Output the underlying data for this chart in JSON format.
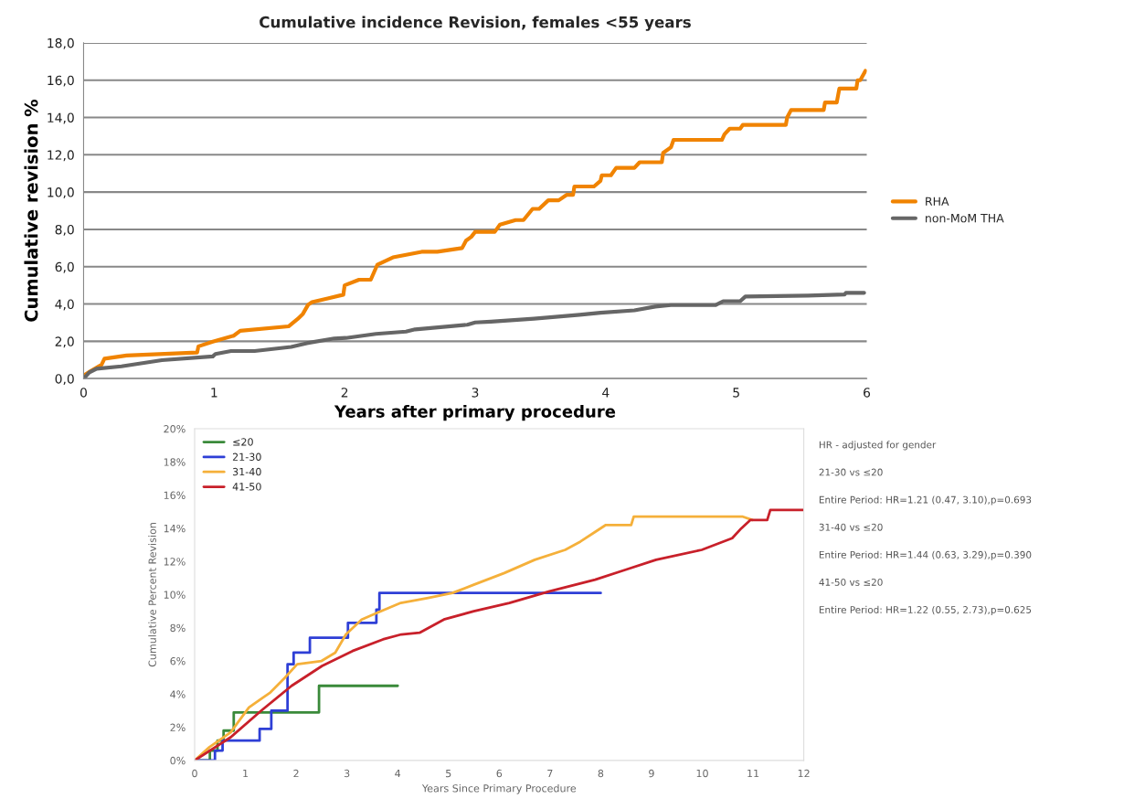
{
  "chart_data": [
    {
      "type": "line",
      "title": "Cumulative incidence Revision, females <55 years",
      "xlabel": "Years after primary procedure",
      "ylabel": "Cumulative revision %",
      "xlim": [
        0,
        6
      ],
      "xticks": [
        0,
        1,
        2,
        3,
        4,
        5,
        6
      ],
      "ylim": [
        0,
        18
      ],
      "yticks": [
        {
          "value": 0,
          "label": "0,0"
        },
        {
          "value": 2,
          "label": "2,0"
        },
        {
          "value": 4,
          "label": "4,0"
        },
        {
          "value": 6,
          "label": "6,0"
        },
        {
          "value": 8,
          "label": "8,0"
        },
        {
          "value": 10,
          "label": "10,0"
        },
        {
          "value": 12,
          "label": "12,0"
        },
        {
          "value": 14,
          "label": "14,0"
        },
        {
          "value": 16,
          "label": "16,0"
        },
        {
          "value": 18,
          "label": "18,0"
        }
      ],
      "grid": "y",
      "legend": "right",
      "series": [
        {
          "name": "RHA",
          "color": "#f08300",
          "x": [
            0,
            0.056,
            0.137,
            0.16,
            0.33,
            0.87,
            0.88,
            0.99,
            1.15,
            1.2,
            1.57,
            1.64,
            1.68,
            1.72,
            1.75,
            1.87,
            1.99,
            2.0,
            2.11,
            2.2,
            2.25,
            2.37,
            2.59,
            2.71,
            2.9,
            2.93,
            2.97,
            3.0,
            3.15,
            3.19,
            3.31,
            3.37,
            3.44,
            3.49,
            3.56,
            3.64,
            3.7,
            3.75,
            3.76,
            3.91,
            3.96,
            3.97,
            4.04,
            4.08,
            4.22,
            4.26,
            4.43,
            4.44,
            4.5,
            4.52,
            4.89,
            4.91,
            4.95,
            5.03,
            5.05,
            5.38,
            5.39,
            5.42,
            5.67,
            5.68,
            5.77,
            5.79,
            5.92,
            5.93,
            5.95,
            5.99
          ],
          "values": [
            0.16,
            0.41,
            0.74,
            1.07,
            1.24,
            1.4,
            1.73,
            1.98,
            2.3,
            2.56,
            2.8,
            3.2,
            3.47,
            3.96,
            4.1,
            4.3,
            4.5,
            5.0,
            5.3,
            5.3,
            6.1,
            6.5,
            6.8,
            6.8,
            7.0,
            7.4,
            7.6,
            7.87,
            7.87,
            8.26,
            8.5,
            8.5,
            9.1,
            9.1,
            9.56,
            9.56,
            9.85,
            9.85,
            10.3,
            10.3,
            10.6,
            10.9,
            10.9,
            11.3,
            11.3,
            11.6,
            11.6,
            12.1,
            12.4,
            12.8,
            12.8,
            13.1,
            13.4,
            13.4,
            13.6,
            13.6,
            14.0,
            14.4,
            14.4,
            14.8,
            14.8,
            15.55,
            15.55,
            16.0,
            16.0,
            16.5
          ]
        },
        {
          "name": "non-MoM THA",
          "color": "#666666",
          "x": [
            0,
            0.044,
            0.1,
            0.29,
            0.6,
            0.99,
            1.01,
            1.13,
            1.31,
            1.59,
            1.71,
            1.92,
            2.01,
            2.24,
            2.47,
            2.54,
            2.94,
            3.0,
            3.12,
            3.45,
            3.8,
            3.96,
            4.22,
            4.38,
            4.5,
            4.84,
            4.9,
            5.03,
            5.07,
            5.55,
            5.83,
            5.84,
            5.98
          ],
          "values": [
            0,
            0.33,
            0.53,
            0.66,
            0.99,
            1.19,
            1.32,
            1.48,
            1.48,
            1.7,
            1.9,
            2.15,
            2.18,
            2.4,
            2.52,
            2.64,
            2.89,
            3.01,
            3.05,
            3.21,
            3.42,
            3.53,
            3.66,
            3.86,
            3.94,
            3.94,
            4.15,
            4.15,
            4.4,
            4.45,
            4.51,
            4.6,
            4.6
          ]
        }
      ]
    },
    {
      "type": "line",
      "xlabel": "Years Since Primary Procedure",
      "ylabel": "Cumulative Percent Revision",
      "xlim": [
        0,
        12
      ],
      "xticks": [
        0,
        1,
        2,
        3,
        4,
        5,
        6,
        7,
        8,
        9,
        10,
        11,
        12
      ],
      "ylim": [
        0,
        20
      ],
      "yticks": [
        {
          "value": 0,
          "label": "0%"
        },
        {
          "value": 2,
          "label": "2%"
        },
        {
          "value": 4,
          "label": "4%"
        },
        {
          "value": 6,
          "label": "6%"
        },
        {
          "value": 8,
          "label": "8%"
        },
        {
          "value": 10,
          "label": "10%"
        },
        {
          "value": 12,
          "label": "12%"
        },
        {
          "value": 14,
          "label": "14%"
        },
        {
          "value": 16,
          "label": "16%"
        },
        {
          "value": 18,
          "label": "18%"
        },
        {
          "value": 20,
          "label": "20%"
        }
      ],
      "grid": false,
      "legend": "top left",
      "annotations": [
        "HR - adjusted for gender",
        "21-30 vs ≤20",
        "Entire Period: HR=1.21 (0.47, 3.10),p=0.693",
        "31-40 vs ≤20",
        "Entire Period: HR=1.44 (0.63, 3.29),p=0.390",
        "41-50 vs ≤20",
        "Entire Period: HR=1.22 (0.55, 2.73),p=0.625"
      ],
      "series": [
        {
          "name": "≤20",
          "type": "step",
          "color": "#3a8a3a",
          "x": [
            0,
            0.3,
            0.45,
            0.57,
            0.77,
            2.45,
            4.0
          ],
          "values": [
            0,
            0.6,
            1.2,
            1.8,
            2.9,
            4.5,
            4.5
          ]
        },
        {
          "name": "21-30",
          "type": "step",
          "color": "#2e3fd6",
          "x": [
            0,
            0.4,
            0.55,
            1.28,
            1.51,
            1.83,
            1.95,
            2.27,
            3.02,
            3.58,
            3.64,
            8.0
          ],
          "values": [
            0,
            0.6,
            1.2,
            1.9,
            3.0,
            5.8,
            6.5,
            7.4,
            8.3,
            9.1,
            10.1,
            10.1
          ]
        },
        {
          "name": "31-40",
          "color": "#f5b03a",
          "x": [
            0,
            0.29,
            0.71,
            1.07,
            1.49,
            1.78,
            2.02,
            2.5,
            2.77,
            2.98,
            3.29,
            3.59,
            4.06,
            4.6,
            5.08,
            5.5,
            6.1,
            6.7,
            7.3,
            7.6,
            7.9,
            8.1,
            8.6,
            8.65,
            10.8,
            10.99
          ],
          "values": [
            0,
            0.8,
            1.7,
            3.2,
            4.1,
            5.0,
            5.8,
            6.0,
            6.5,
            7.6,
            8.5,
            8.9,
            9.5,
            9.8,
            10.1,
            10.6,
            11.3,
            12.1,
            12.7,
            13.2,
            13.8,
            14.2,
            14.2,
            14.7,
            14.7,
            14.5
          ]
        },
        {
          "name": "41-50",
          "color": "#c8202a",
          "x": [
            0,
            0.71,
            1.31,
            1.91,
            2.51,
            3.11,
            3.71,
            4.07,
            4.43,
            4.91,
            5.5,
            6.2,
            6.99,
            7.89,
            8.49,
            9.09,
            9.99,
            10.59,
            10.77,
            10.95,
            11.28,
            11.34,
            12.0
          ],
          "values": [
            0,
            1.4,
            3.0,
            4.5,
            5.7,
            6.6,
            7.3,
            7.6,
            7.7,
            8.5,
            9.0,
            9.5,
            10.2,
            10.9,
            11.5,
            12.1,
            12.7,
            13.4,
            14.0,
            14.5,
            14.5,
            15.1,
            15.1
          ]
        }
      ]
    }
  ]
}
